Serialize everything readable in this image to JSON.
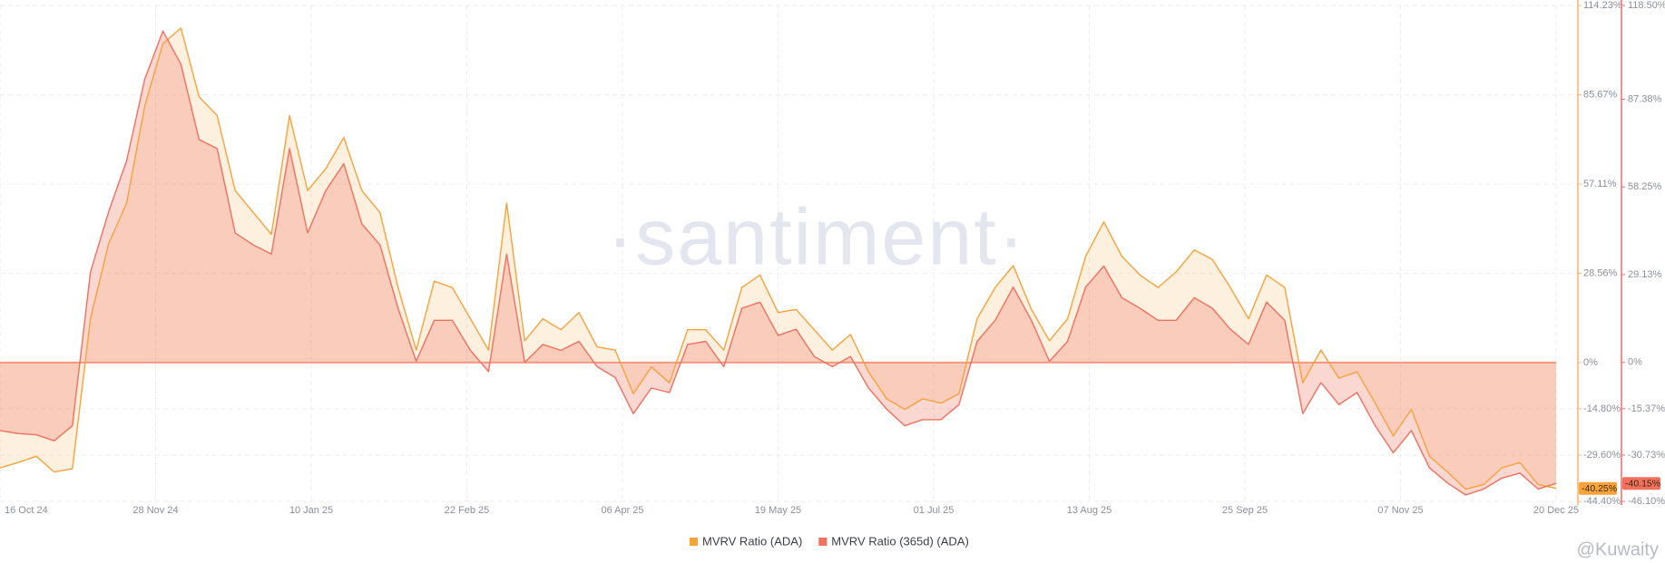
{
  "chart_data": {
    "type": "line",
    "watermark": "·santiment·",
    "credit": "@Kuwaity",
    "grid": true,
    "x": [
      "2024-10-16",
      "2024-10-21",
      "2024-10-26",
      "2024-10-31",
      "2024-11-05",
      "2024-11-10",
      "2024-11-15",
      "2024-11-20",
      "2024-11-25",
      "2024-11-30",
      "2024-12-05",
      "2024-12-10",
      "2024-12-15",
      "2024-12-20",
      "2024-12-25",
      "2024-12-30",
      "2025-01-04",
      "2025-01-09",
      "2025-01-14",
      "2025-01-19",
      "2025-01-24",
      "2025-01-29",
      "2025-02-03",
      "2025-02-08",
      "2025-02-13",
      "2025-02-18",
      "2025-02-23",
      "2025-02-28",
      "2025-03-05",
      "2025-03-10",
      "2025-03-15",
      "2025-03-20",
      "2025-03-25",
      "2025-03-30",
      "2025-04-04",
      "2025-04-09",
      "2025-04-14",
      "2025-04-19",
      "2025-04-24",
      "2025-04-29",
      "2025-05-04",
      "2025-05-09",
      "2025-05-14",
      "2025-05-19",
      "2025-05-24",
      "2025-05-29",
      "2025-06-03",
      "2025-06-08",
      "2025-06-13",
      "2025-06-18",
      "2025-06-23",
      "2025-06-28",
      "2025-07-03",
      "2025-07-08",
      "2025-07-13",
      "2025-07-18",
      "2025-07-23",
      "2025-07-28",
      "2025-08-02",
      "2025-08-07",
      "2025-08-12",
      "2025-08-17",
      "2025-08-22",
      "2025-08-27",
      "2025-09-01",
      "2025-09-06",
      "2025-09-11",
      "2025-09-16",
      "2025-09-21",
      "2025-09-26",
      "2025-10-01",
      "2025-10-06",
      "2025-10-11",
      "2025-10-16",
      "2025-10-21",
      "2025-10-26",
      "2025-10-31",
      "2025-11-05",
      "2025-11-10",
      "2025-11-15",
      "2025-11-20",
      "2025-11-25",
      "2025-11-30",
      "2025-12-05",
      "2025-12-10",
      "2025-12-15",
      "2025-12-20"
    ],
    "xlim": [
      "2024-10-16",
      "2025-12-20"
    ],
    "xticks": [
      {
        "value": "2024-10-16",
        "label": "16 Oct 24"
      },
      {
        "value": "2024-11-28",
        "label": "28 Nov 24"
      },
      {
        "value": "2025-01-10",
        "label": "10 Jan 25"
      },
      {
        "value": "2025-02-22",
        "label": "22 Feb 25"
      },
      {
        "value": "2025-04-06",
        "label": "06 Apr 25"
      },
      {
        "value": "2025-05-19",
        "label": "19 May 25"
      },
      {
        "value": "2025-07-01",
        "label": "01 Jul 25"
      },
      {
        "value": "2025-08-13",
        "label": "13 Aug 25"
      },
      {
        "value": "2025-09-25",
        "label": "25 Sep 25"
      },
      {
        "value": "2025-11-07",
        "label": "07 Nov 25"
      },
      {
        "value": "2025-12-20",
        "label": "20 Dec 25"
      }
    ],
    "ylim": [
      -44.4,
      114.23
    ],
    "yticks": [
      {
        "value": 114.23,
        "label": "114.23%"
      },
      {
        "value": 85.67,
        "label": "85.67%"
      },
      {
        "value": 57.11,
        "label": "57.11%"
      },
      {
        "value": 28.56,
        "label": "28.56%"
      },
      {
        "value": 0,
        "label": "0%"
      },
      {
        "value": -14.8,
        "label": "-14.80%"
      },
      {
        "value": -29.6,
        "label": "-29.60%"
      },
      {
        "value": -44.4,
        "label": "-44.40%"
      }
    ],
    "y2lim": [
      -46.1,
      118.5
    ],
    "y2ticks": [
      {
        "value": 118.5,
        "label": "118.50%"
      },
      {
        "value": 87.38,
        "label": "87.38%"
      },
      {
        "value": 58.25,
        "label": "58.25%"
      },
      {
        "value": 29.13,
        "label": "29.13%"
      },
      {
        "value": 0,
        "label": "0%"
      },
      {
        "value": -15.37,
        "label": "-15.37%"
      },
      {
        "value": -30.73,
        "label": "-30.73%"
      },
      {
        "value": -46.1,
        "label": "-46.10%"
      }
    ],
    "series": [
      {
        "name": "MVRV Ratio (ADA)",
        "color": "#f7a23b",
        "last_label": "-40.25%",
        "values": [
          -33.7,
          -32,
          -30,
          -35,
          -34,
          14,
          38,
          51,
          82,
          102,
          107,
          85,
          79,
          55,
          48,
          41,
          79,
          55,
          62,
          72,
          55,
          48,
          24,
          4,
          26,
          24,
          14,
          4,
          51,
          7,
          14,
          10.5,
          16,
          5,
          4,
          -10,
          -1.4,
          -6.5,
          10.5,
          10.5,
          4,
          24,
          28,
          16,
          17,
          10.5,
          4,
          9,
          -3,
          -11.6,
          -15,
          -11.6,
          -13,
          -10,
          14,
          24,
          31,
          17,
          7,
          14,
          34,
          45,
          34,
          28,
          24,
          29,
          36,
          33,
          24,
          14,
          28,
          24,
          -6.5,
          4,
          -5,
          -3,
          -13,
          -23.5,
          -15,
          -30,
          -35,
          -40.5,
          -39,
          -33.7,
          -32,
          -39,
          -40.25
        ]
      },
      {
        "name": "MVRV Ratio (365d) (ADA)",
        "color": "#f2705e",
        "axis": "y2",
        "last_label": "-40.15%",
        "values": [
          -22.6,
          -23.6,
          -24,
          -26,
          -21,
          30,
          50,
          67,
          94,
          110,
          99,
          74,
          71,
          43,
          39,
          36,
          71,
          43,
          57,
          66,
          46,
          39,
          18,
          0.4,
          14,
          14,
          4,
          -3,
          36,
          0,
          6,
          4,
          7,
          -1.4,
          -5,
          -17,
          -8.5,
          -10,
          6,
          7,
          -1.4,
          18,
          20,
          9,
          11,
          2,
          -1.4,
          2,
          -8.5,
          -15.5,
          -21,
          -19,
          -19,
          -14,
          7,
          14,
          25,
          14,
          0.4,
          7,
          25,
          32,
          21.5,
          18,
          14,
          14,
          21.5,
          18,
          11,
          6,
          20,
          14,
          -17,
          -6.7,
          -14,
          -10,
          -21,
          -30,
          -22.6,
          -35,
          -40,
          -44,
          -42,
          -38.4,
          -36.7,
          -42,
          -40.15
        ]
      }
    ]
  }
}
